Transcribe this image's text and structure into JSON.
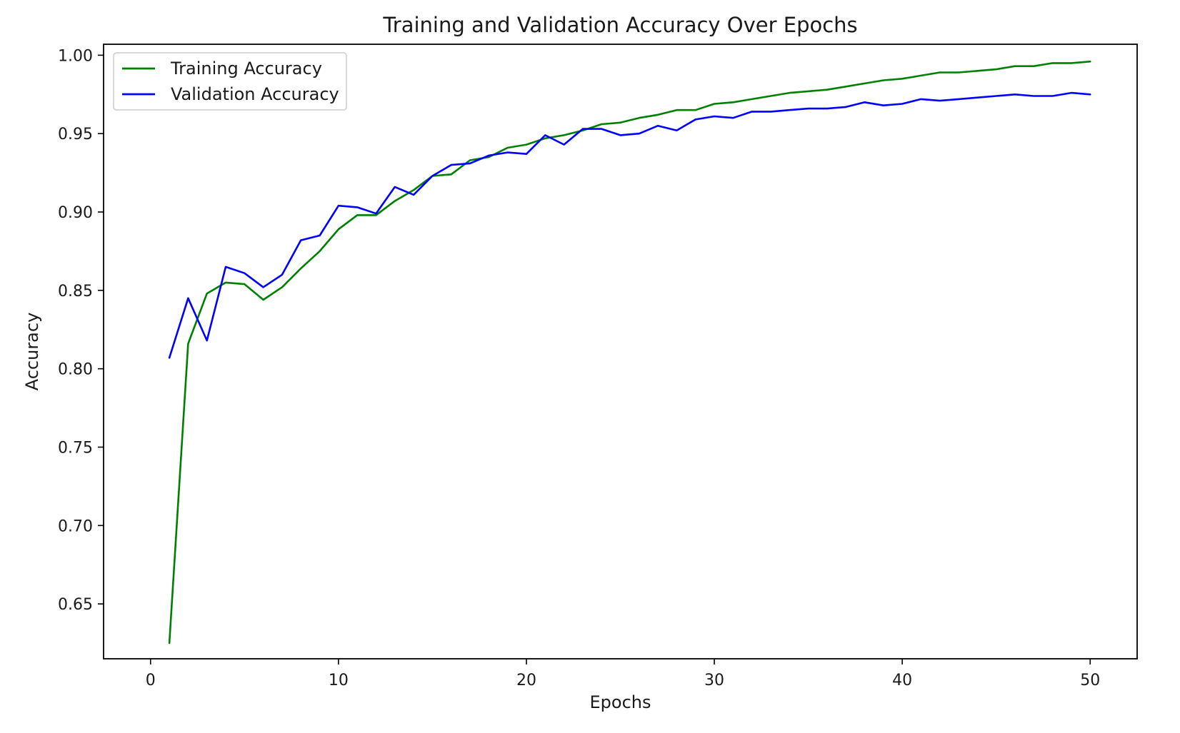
{
  "chart_data": {
    "type": "line",
    "title": "Training and Validation Accuracy Over Epochs",
    "xlabel": "Epochs",
    "ylabel": "Accuracy",
    "xlim": [
      -2.5,
      52.5
    ],
    "ylim": [
      0.615,
      1.007
    ],
    "xticks": [
      0,
      10,
      20,
      30,
      40,
      50
    ],
    "xtick_labels": [
      "0",
      "10",
      "20",
      "30",
      "40",
      "50"
    ],
    "yticks": [
      0.65,
      0.7,
      0.75,
      0.8,
      0.85,
      0.9,
      0.95,
      1.0
    ],
    "ytick_labels": [
      "0.65",
      "0.70",
      "0.75",
      "0.80",
      "0.85",
      "0.90",
      "0.95",
      "1.00"
    ],
    "grid": false,
    "legend_position": "top-left",
    "x": [
      1,
      2,
      3,
      4,
      5,
      6,
      7,
      8,
      9,
      10,
      11,
      12,
      13,
      14,
      15,
      16,
      17,
      18,
      19,
      20,
      21,
      22,
      23,
      24,
      25,
      26,
      27,
      28,
      29,
      30,
      31,
      32,
      33,
      34,
      35,
      36,
      37,
      38,
      39,
      40,
      41,
      42,
      43,
      44,
      45,
      46,
      47,
      48,
      49,
      50
    ],
    "series": [
      {
        "name": "Training Accuracy",
        "color": "#008000",
        "values": [
          0.625,
          0.816,
          0.848,
          0.855,
          0.854,
          0.844,
          0.852,
          0.864,
          0.875,
          0.889,
          0.898,
          0.898,
          0.907,
          0.914,
          0.923,
          0.924,
          0.933,
          0.935,
          0.941,
          0.943,
          0.947,
          0.949,
          0.952,
          0.956,
          0.957,
          0.96,
          0.962,
          0.965,
          0.965,
          0.969,
          0.97,
          0.972,
          0.974,
          0.976,
          0.977,
          0.978,
          0.98,
          0.982,
          0.984,
          0.985,
          0.987,
          0.989,
          0.989,
          0.99,
          0.991,
          0.993,
          0.993,
          0.995,
          0.995,
          0.996
        ]
      },
      {
        "name": "Validation Accuracy",
        "color": "#0000ff",
        "values": [
          0.807,
          0.845,
          0.818,
          0.865,
          0.861,
          0.852,
          0.86,
          0.882,
          0.885,
          0.904,
          0.903,
          0.899,
          0.916,
          0.911,
          0.923,
          0.93,
          0.931,
          0.936,
          0.938,
          0.937,
          0.949,
          0.943,
          0.953,
          0.953,
          0.949,
          0.95,
          0.955,
          0.952,
          0.959,
          0.961,
          0.96,
          0.964,
          0.964,
          0.965,
          0.966,
          0.966,
          0.967,
          0.97,
          0.968,
          0.969,
          0.972,
          0.971,
          0.972,
          0.973,
          0.974,
          0.975,
          0.974,
          0.974,
          0.976,
          0.975
        ]
      }
    ]
  }
}
